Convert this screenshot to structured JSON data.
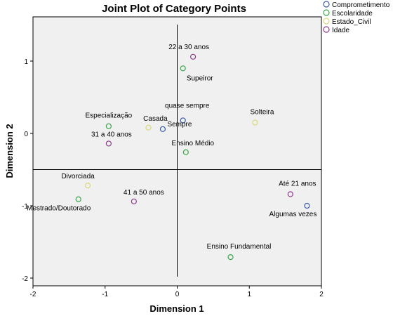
{
  "chart_data": {
    "type": "scatter",
    "title": "Joint Plot of Category Points",
    "xlabel": "Dimension 1",
    "ylabel": "Dimension 2",
    "xlim": [
      -2,
      2
    ],
    "ylim": [
      -2.1,
      1.6
    ],
    "xticks": [
      "-2",
      "-1",
      "0",
      "1",
      "2"
    ],
    "yticks": [
      "1",
      "0",
      "-1",
      "-2"
    ],
    "reference_lines": {
      "x": 0,
      "y": -0.5
    },
    "legend_position": "top-right",
    "series": [
      {
        "name": "Comprometimento",
        "color": "#3a5ba8",
        "points": [
          {
            "label": "quase sempre",
            "x": 0.08,
            "y": 0.18
          },
          {
            "label": "Sempre",
            "x": -0.2,
            "y": 0.06
          },
          {
            "label": "Algumas vezes",
            "x": 1.8,
            "y": -1.0
          }
        ]
      },
      {
        "name": "Escolaridade",
        "color": "#36a848",
        "points": [
          {
            "label": "Supeiror",
            "x": 0.08,
            "y": 0.9
          },
          {
            "label": "Especialização",
            "x": -0.95,
            "y": 0.1
          },
          {
            "label": "Ensino Médio",
            "x": 0.12,
            "y": -0.26
          },
          {
            "label": "Mestrado/Doutorado",
            "x": -1.37,
            "y": -0.91
          },
          {
            "label": "Ensino Fundamental",
            "x": 0.74,
            "y": -1.71
          }
        ]
      },
      {
        "name": "Estado_Civil",
        "color": "#d8d87a",
        "points": [
          {
            "label": "Casada",
            "x": -0.4,
            "y": 0.08
          },
          {
            "label": "Solteira",
            "x": 1.08,
            "y": 0.15
          },
          {
            "label": "Divorciada",
            "x": -1.24,
            "y": -0.72
          }
        ]
      },
      {
        "name": "Idade",
        "color": "#8e3c8e",
        "points": [
          {
            "label": "22 a 30 anos",
            "x": 0.22,
            "y": 1.06
          },
          {
            "label": "31 a 40 anos",
            "x": -0.95,
            "y": -0.14
          },
          {
            "label": "41 a 50 anos",
            "x": -0.6,
            "y": -0.94
          },
          {
            "label": "Até 21 anos",
            "x": 1.57,
            "y": -0.84
          }
        ]
      }
    ]
  }
}
